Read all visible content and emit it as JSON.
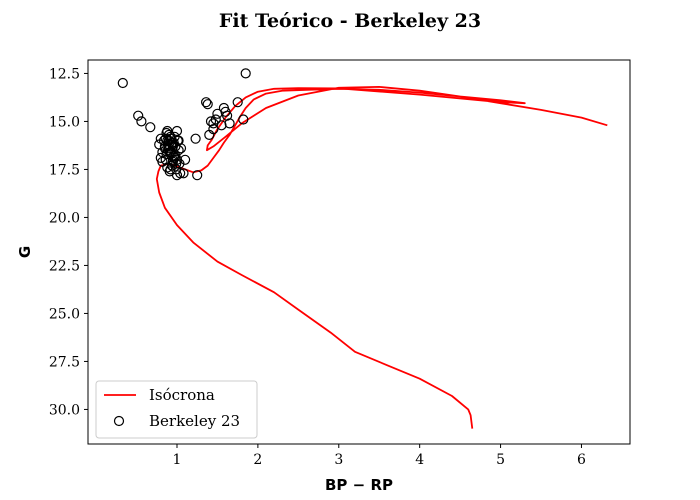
{
  "chart_data": {
    "type": "scatter",
    "title": "Fit Teórico - Berkeley 23",
    "xlabel": "BP − RP",
    "ylabel": "G",
    "xlim": [
      -0.1,
      6.6
    ],
    "ylim": [
      31.8,
      11.8
    ],
    "y_inverted": true,
    "xticks": [
      1,
      2,
      3,
      4,
      5,
      6
    ],
    "yticks": [
      12.5,
      15.0,
      17.5,
      20.0,
      22.5,
      25.0,
      27.5,
      30.0
    ],
    "ytick_labels": [
      "12.5",
      "15.0",
      "17.5",
      "20.0",
      "22.5",
      "25.0",
      "27.5",
      "30.0"
    ],
    "legend_position": "lower left",
    "grid": false,
    "series": [
      {
        "name": "Isócrona",
        "kind": "line",
        "color": "#ff0000",
        "x": [
          4.65,
          4.63,
          4.6,
          4.4,
          4.0,
          3.6,
          3.2,
          2.9,
          2.5,
          2.2,
          1.8,
          1.5,
          1.2,
          1.0,
          0.85,
          0.78,
          0.75,
          0.77,
          0.8,
          0.9,
          1.0,
          1.1,
          1.2,
          1.3,
          1.38,
          1.45,
          1.52,
          1.58,
          1.65,
          1.72,
          1.78,
          1.85,
          1.95,
          2.1,
          2.3,
          2.6,
          3.0,
          3.5,
          4.0,
          4.5,
          5.0,
          5.3,
          5.0,
          4.0,
          3.0,
          2.5,
          2.2,
          2.0,
          1.85,
          1.72,
          1.6,
          1.5,
          1.43,
          1.38,
          1.37,
          1.45,
          1.6,
          1.8,
          2.1,
          2.5,
          3.0,
          3.5,
          4.0,
          4.5,
          5.0,
          5.5,
          6.0,
          6.32
        ],
        "y": [
          31.0,
          30.3,
          30.0,
          29.3,
          28.4,
          27.7,
          27.0,
          26.0,
          24.8,
          23.9,
          23.0,
          22.3,
          21.3,
          20.4,
          19.5,
          18.7,
          18.0,
          17.6,
          17.3,
          17.2,
          17.35,
          17.5,
          17.65,
          17.55,
          17.3,
          16.9,
          16.5,
          16.1,
          15.7,
          15.2,
          14.75,
          14.3,
          13.85,
          13.55,
          13.4,
          13.35,
          13.3,
          13.35,
          13.5,
          13.7,
          13.9,
          14.05,
          14.0,
          13.6,
          13.28,
          13.27,
          13.3,
          13.45,
          13.75,
          14.2,
          14.8,
          15.4,
          15.95,
          16.25,
          16.5,
          16.3,
          15.8,
          15.1,
          14.3,
          13.65,
          13.25,
          13.2,
          13.4,
          13.7,
          14.05,
          14.4,
          14.8,
          15.2
        ]
      },
      {
        "name": "Berkeley 23",
        "kind": "scatter",
        "color": "#000000",
        "x": [
          0.33,
          0.52,
          0.56,
          0.67,
          1.36,
          1.38,
          1.85,
          1.4,
          1.42,
          1.45,
          1.5,
          1.55,
          1.58,
          1.6,
          1.62,
          1.65,
          1.75,
          1.82,
          1.23,
          1.45,
          1.48,
          0.78,
          0.8,
          0.82,
          0.84,
          0.86,
          0.88,
          0.9,
          0.92,
          0.94,
          0.96,
          0.98,
          1.0,
          1.02,
          0.8,
          0.82,
          0.85,
          0.87,
          0.9,
          0.92,
          0.95,
          0.97,
          0.99,
          1.01,
          0.85,
          0.88,
          0.9,
          0.93,
          0.95,
          0.98,
          1.0,
          1.03,
          0.86,
          0.89,
          0.91,
          0.94,
          0.96,
          0.99,
          0.87,
          0.9,
          0.92,
          0.95,
          0.88,
          0.91,
          0.94,
          0.97,
          1.0,
          1.04,
          1.08,
          1.25,
          1.1,
          1.05,
          1.02,
          0.92,
          0.95
        ],
        "y": [
          13.0,
          14.7,
          15.0,
          15.3,
          14.0,
          14.1,
          12.5,
          15.7,
          15.0,
          15.1,
          14.6,
          15.2,
          14.3,
          14.5,
          14.7,
          15.1,
          14.0,
          14.9,
          15.9,
          15.4,
          14.9,
          16.2,
          15.9,
          16.6,
          16.0,
          17.0,
          15.5,
          16.4,
          15.8,
          17.3,
          16.1,
          16.8,
          15.5,
          16.5,
          16.9,
          17.1,
          16.3,
          16.7,
          16.0,
          17.5,
          16.2,
          16.9,
          17.2,
          16.0,
          16.4,
          17.4,
          15.7,
          16.6,
          17.0,
          16.3,
          17.8,
          17.2,
          15.9,
          16.5,
          17.6,
          16.1,
          16.8,
          17.5,
          15.6,
          16.2,
          16.7,
          17.1,
          16.0,
          16.6,
          17.3,
          15.8,
          17.0,
          17.7,
          17.7,
          17.8,
          17.0,
          16.4,
          16.0,
          15.9,
          16.3
        ]
      }
    ]
  }
}
